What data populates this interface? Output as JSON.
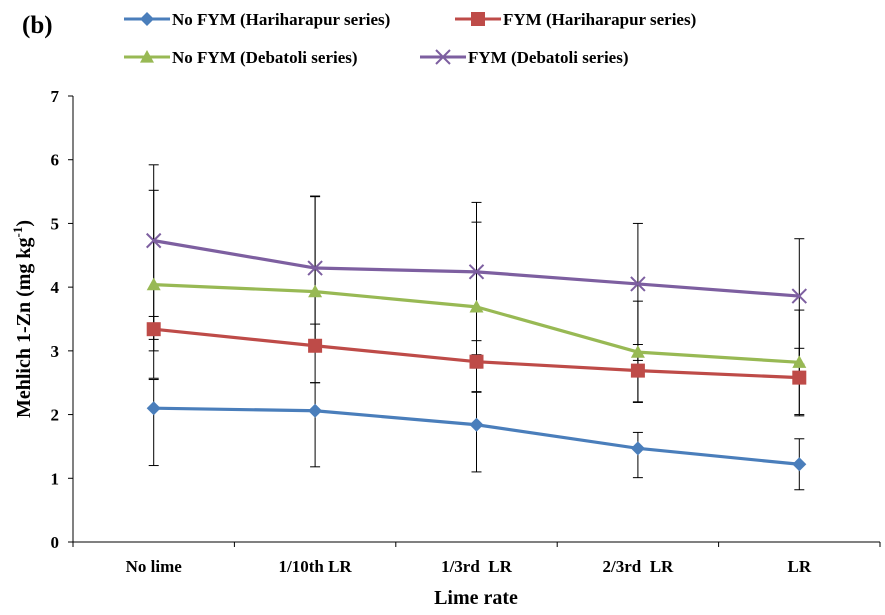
{
  "panel_label": "(b)",
  "chart_data": {
    "type": "line",
    "title": "",
    "xlabel": "Lime rate",
    "ylabel_main": "Mehlich 1-Zn (mg kg",
    "ylabel_sup": "-1",
    "ylabel_close": ")",
    "categories": [
      "No lime",
      "1/10th LR",
      "1/3rd  LR",
      "2/3rd  LR",
      "LR"
    ],
    "ylim": [
      0,
      7
    ],
    "yticks": [
      0,
      1,
      2,
      3,
      4,
      5,
      6,
      7
    ],
    "grid": false,
    "legend_position": "top",
    "series": [
      {
        "name": "No FYM (Hariharapur series)",
        "color": "#4a7ebb",
        "marker": "diamond",
        "values": [
          2.1,
          2.06,
          1.84,
          1.47,
          1.22
        ],
        "err_low": [
          0.9,
          0.88,
          0.74,
          0.46,
          0.4
        ],
        "err_high": [
          0.45,
          0.44,
          0.52,
          0.25,
          0.4
        ]
      },
      {
        "name": "FYM (Hariharapur series)",
        "color": "#be4b48",
        "marker": "square",
        "values": [
          3.34,
          3.08,
          2.83,
          2.69,
          2.58
        ],
        "err_low": [
          0.77,
          0.58,
          0.48,
          0.5,
          0.6
        ],
        "err_high": [
          0.2,
          0.34,
          0.33,
          0.41,
          0.46
        ]
      },
      {
        "name": "No FYM (Debatoli series)",
        "color": "#98b954",
        "marker": "triangle",
        "values": [
          4.04,
          3.93,
          3.69,
          2.98,
          2.82
        ],
        "err_low": [
          1.04,
          0.92,
          0.96,
          0.78,
          0.82
        ],
        "err_high": [
          1.48,
          1.5,
          1.33,
          0.8,
          0.82
        ]
      },
      {
        "name": "FYM (Debatoli series)",
        "color": "#7d5fa0",
        "marker": "x",
        "values": [
          4.73,
          4.3,
          4.24,
          4.05,
          3.86
        ],
        "err_low": [
          1.55,
          1.3,
          1.3,
          1.2,
          1.07
        ],
        "err_high": [
          1.19,
          1.12,
          1.09,
          0.95,
          0.9
        ]
      }
    ]
  }
}
